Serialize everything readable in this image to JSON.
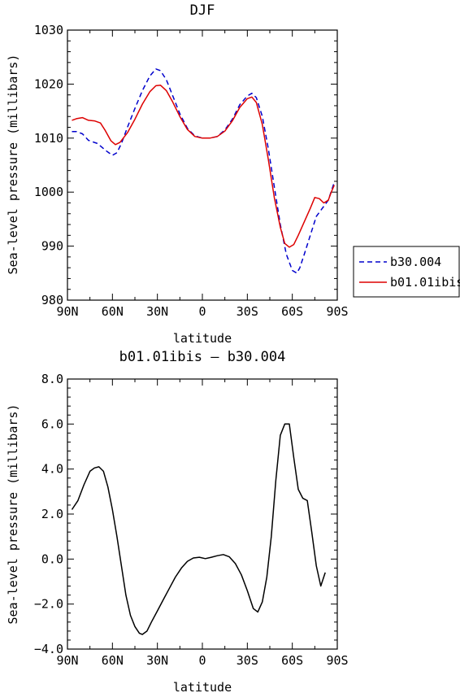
{
  "chart_data": [
    {
      "type": "line",
      "title": "DJF",
      "xlabel": "latitude",
      "ylabel": "Sea-level pressure (millibars)",
      "x_tick_labels": [
        "90N",
        "60N",
        "30N",
        "0",
        "30S",
        "60S",
        "90S"
      ],
      "x_tick_values": [
        -90,
        -60,
        -30,
        0,
        30,
        60,
        90
      ],
      "y_tick_labels": [
        "980",
        "990",
        "1000",
        "1010",
        "1020",
        "1030"
      ],
      "y_tick_values": [
        980,
        990,
        1000,
        1010,
        1020,
        1030
      ],
      "xlim": [
        -90,
        90
      ],
      "ylim": [
        980,
        1030
      ],
      "legend_position": "right",
      "series": [
        {
          "name": "b30.004",
          "color": "#0000cc",
          "dash": "dashed",
          "points": [
            [
              -87,
              1011.2
            ],
            [
              -84,
              1011.2
            ],
            [
              -80,
              1010.8
            ],
            [
              -76,
              1009.6
            ],
            [
              -70,
              1009.0
            ],
            [
              -64,
              1007.6
            ],
            [
              -60,
              1006.8
            ],
            [
              -57,
              1007.3
            ],
            [
              -54,
              1009.0
            ],
            [
              -50,
              1012.0
            ],
            [
              -45,
              1015.5
            ],
            [
              -40,
              1018.8
            ],
            [
              -35,
              1021.5
            ],
            [
              -31,
              1022.8
            ],
            [
              -28,
              1022.5
            ],
            [
              -24,
              1020.8
            ],
            [
              -20,
              1018.0
            ],
            [
              -15,
              1014.5
            ],
            [
              -10,
              1011.8
            ],
            [
              -5,
              1010.4
            ],
            [
              0,
              1010.0
            ],
            [
              5,
              1010.0
            ],
            [
              10,
              1010.3
            ],
            [
              15,
              1011.5
            ],
            [
              20,
              1013.5
            ],
            [
              25,
              1016.2
            ],
            [
              30,
              1017.8
            ],
            [
              33,
              1018.3
            ],
            [
              36,
              1017.5
            ],
            [
              40,
              1014.0
            ],
            [
              44,
              1008.0
            ],
            [
              48,
              1001.0
            ],
            [
              52,
              994.0
            ],
            [
              56,
              988.5
            ],
            [
              60,
              985.5
            ],
            [
              63,
              985.0
            ],
            [
              65,
              986.0
            ],
            [
              68,
              988.5
            ],
            [
              72,
              992.0
            ],
            [
              76,
              995.5
            ],
            [
              80,
              997.0
            ],
            [
              84,
              998.5
            ],
            [
              88,
              1001.8
            ]
          ]
        },
        {
          "name": "b01.01ibis",
          "color": "#dd0000",
          "dash": "solid",
          "points": [
            [
              -87,
              1013.3
            ],
            [
              -84,
              1013.6
            ],
            [
              -80,
              1013.8
            ],
            [
              -76,
              1013.3
            ],
            [
              -72,
              1013.2
            ],
            [
              -68,
              1012.8
            ],
            [
              -65,
              1011.5
            ],
            [
              -61,
              1009.5
            ],
            [
              -58,
              1008.8
            ],
            [
              -55,
              1009.2
            ],
            [
              -50,
              1011.0
            ],
            [
              -45,
              1013.5
            ],
            [
              -40,
              1016.3
            ],
            [
              -35,
              1018.6
            ],
            [
              -31,
              1019.7
            ],
            [
              -28,
              1019.8
            ],
            [
              -24,
              1018.8
            ],
            [
              -20,
              1016.8
            ],
            [
              -15,
              1014.0
            ],
            [
              -10,
              1011.6
            ],
            [
              -5,
              1010.3
            ],
            [
              0,
              1010.0
            ],
            [
              5,
              1010.0
            ],
            [
              10,
              1010.3
            ],
            [
              15,
              1011.3
            ],
            [
              20,
              1013.2
            ],
            [
              25,
              1015.7
            ],
            [
              30,
              1017.3
            ],
            [
              33,
              1017.6
            ],
            [
              36,
              1016.6
            ],
            [
              40,
              1012.5
            ],
            [
              44,
              1006.0
            ],
            [
              48,
              999.0
            ],
            [
              52,
              993.5
            ],
            [
              55,
              990.5
            ],
            [
              58,
              989.8
            ],
            [
              61,
              990.3
            ],
            [
              64,
              992.0
            ],
            [
              68,
              994.5
            ],
            [
              72,
              997.0
            ],
            [
              75,
              999.0
            ],
            [
              78,
              998.8
            ],
            [
              81,
              998.0
            ],
            [
              84,
              998.5
            ],
            [
              86,
              1000.0
            ],
            [
              88,
              1001.3
            ]
          ]
        }
      ]
    },
    {
      "type": "line",
      "title": "b01.01ibis – b30.004",
      "xlabel": "latitude",
      "ylabel": "Sea-level pressure (millibars)",
      "x_tick_labels": [
        "90N",
        "60N",
        "30N",
        "0",
        "30S",
        "60S",
        "90S"
      ],
      "x_tick_values": [
        -90,
        -60,
        -30,
        0,
        30,
        60,
        90
      ],
      "y_tick_labels": [
        "−4.0",
        "−2.0",
        "0.0",
        "2.0",
        "4.0",
        "6.0",
        "8.0"
      ],
      "y_tick_values": [
        -4,
        -2,
        0,
        2,
        4,
        6,
        8
      ],
      "xlim": [
        -90,
        90
      ],
      "ylim": [
        -4,
        8
      ],
      "series": [
        {
          "color": "#000000",
          "dash": "solid",
          "points": [
            [
              -87,
              2.2
            ],
            [
              -83,
              2.6
            ],
            [
              -79,
              3.3
            ],
            [
              -75,
              3.9
            ],
            [
              -72,
              4.05
            ],
            [
              -69,
              4.1
            ],
            [
              -66,
              3.9
            ],
            [
              -63,
              3.2
            ],
            [
              -60,
              2.2
            ],
            [
              -57,
              1.0
            ],
            [
              -54,
              -0.3
            ],
            [
              -51,
              -1.6
            ],
            [
              -48,
              -2.5
            ],
            [
              -45,
              -3.0
            ],
            [
              -42,
              -3.3
            ],
            [
              -40,
              -3.35
            ],
            [
              -37,
              -3.2
            ],
            [
              -34,
              -2.8
            ],
            [
              -30,
              -2.3
            ],
            [
              -26,
              -1.8
            ],
            [
              -22,
              -1.3
            ],
            [
              -18,
              -0.8
            ],
            [
              -14,
              -0.4
            ],
            [
              -10,
              -0.1
            ],
            [
              -6,
              0.05
            ],
            [
              -2,
              0.08
            ],
            [
              2,
              0.02
            ],
            [
              6,
              0.08
            ],
            [
              10,
              0.15
            ],
            [
              14,
              0.2
            ],
            [
              18,
              0.1
            ],
            [
              22,
              -0.2
            ],
            [
              26,
              -0.7
            ],
            [
              30,
              -1.4
            ],
            [
              34,
              -2.2
            ],
            [
              37,
              -2.35
            ],
            [
              40,
              -1.9
            ],
            [
              43,
              -0.8
            ],
            [
              46,
              1.0
            ],
            [
              49,
              3.5
            ],
            [
              52,
              5.5
            ],
            [
              55,
              6.0
            ],
            [
              58,
              6.0
            ],
            [
              61,
              4.5
            ],
            [
              64,
              3.1
            ],
            [
              67,
              2.7
            ],
            [
              70,
              2.6
            ],
            [
              73,
              1.2
            ],
            [
              76,
              -0.3
            ],
            [
              79,
              -1.2
            ],
            [
              82,
              -0.6
            ]
          ]
        }
      ]
    }
  ]
}
